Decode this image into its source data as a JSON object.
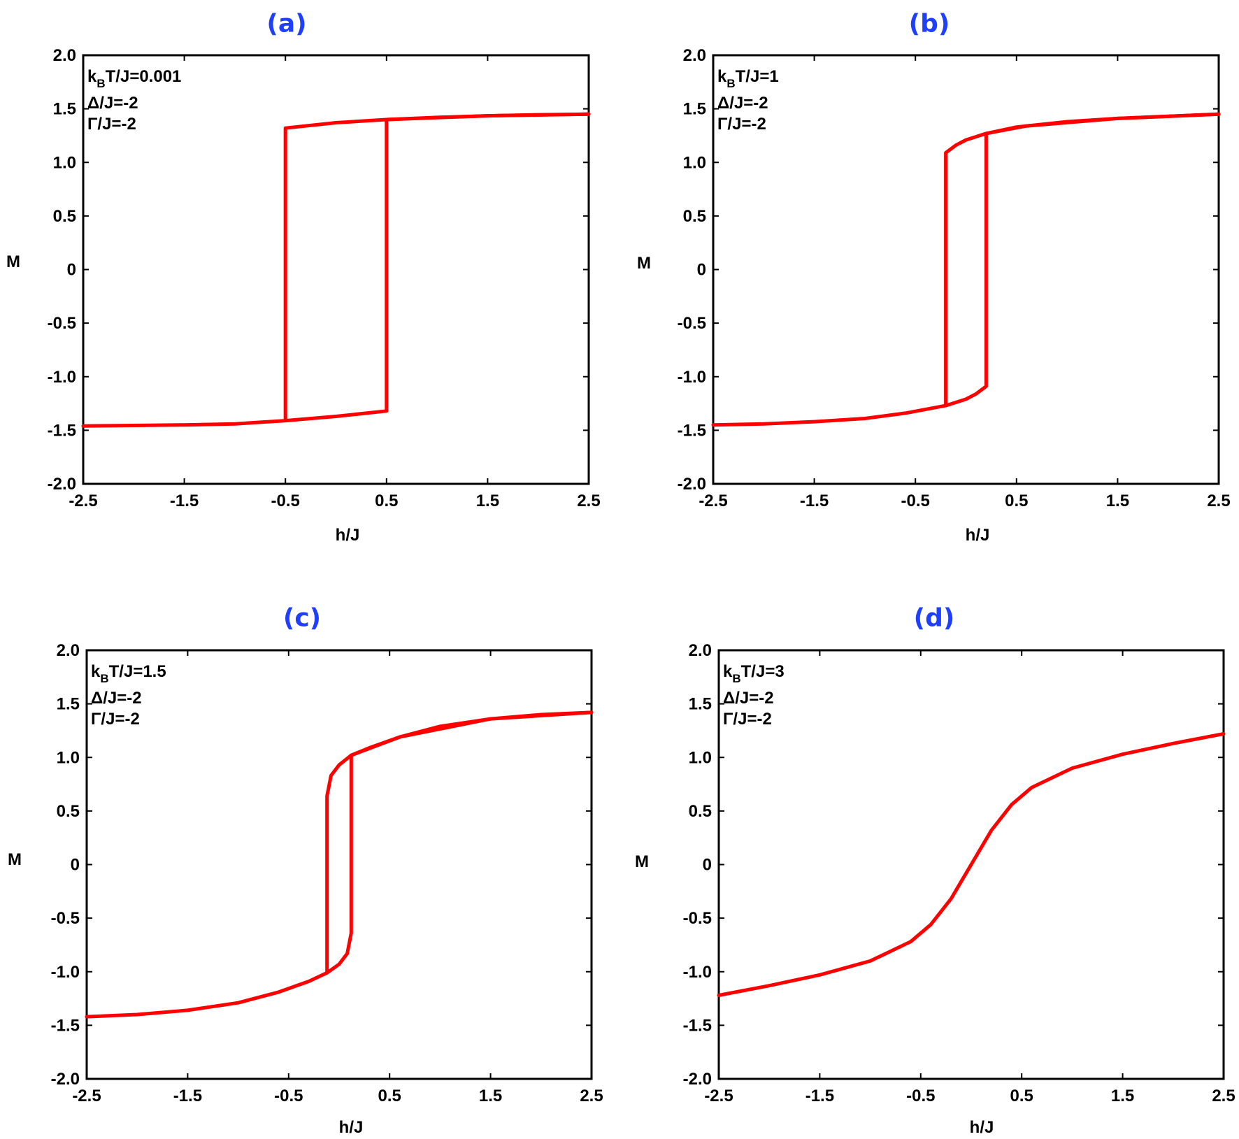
{
  "colors": {
    "curve": "#ff0000",
    "panel_label": "#1f3fff",
    "axis": "#000000"
  },
  "chart_data": [
    {
      "type": "line",
      "panel_label": "(a)",
      "xlabel": "h/J",
      "ylabel": "M",
      "xlim": [
        -2.5,
        2.5
      ],
      "ylim": [
        -2.0,
        2.0
      ],
      "x_ticks": [
        "-2.5",
        "-1.5",
        "-0.5",
        "0.5",
        "1.5",
        "2.5"
      ],
      "y_ticks": [
        "2.0",
        "1.5",
        "1.0",
        "0.5",
        "0",
        "-0.5",
        "-1.0",
        "-1.5",
        "-2.0"
      ],
      "annotations": [
        {
          "main": "k",
          "sub": "B",
          "rest": "T/J=0.001"
        },
        {
          "main": "Δ/J=-2"
        },
        {
          "main": "Γ/J=-2"
        }
      ],
      "series": [
        {
          "points": [
            [
              -2.5,
              -1.46
            ],
            [
              -2.0,
              -1.455
            ],
            [
              -1.5,
              -1.45
            ],
            [
              -1.0,
              -1.44
            ],
            [
              -0.5,
              -1.41
            ],
            [
              0.0,
              -1.37
            ],
            [
              0.5,
              -1.32
            ],
            [
              0.5,
              1.4
            ],
            [
              1.0,
              1.42
            ],
            [
              1.5,
              1.435
            ],
            [
              2.0,
              1.445
            ],
            [
              2.5,
              1.45
            ]
          ]
        },
        {
          "points": [
            [
              2.5,
              1.45
            ],
            [
              1.5,
              1.435
            ],
            [
              0.5,
              1.4
            ],
            [
              0.0,
              1.37
            ],
            [
              -0.5,
              1.32
            ],
            [
              -0.5,
              -1.41
            ]
          ]
        }
      ]
    },
    {
      "type": "line",
      "panel_label": "(b)",
      "xlabel": "h/J",
      "ylabel": "M",
      "xlim": [
        -2.5,
        2.5
      ],
      "ylim": [
        -2.0,
        2.0
      ],
      "x_ticks": [
        "-2.5",
        "-1.5",
        "-0.5",
        "0.5",
        "1.5",
        "2.5"
      ],
      "y_ticks": [
        "2.0",
        "1.5",
        "1.0",
        "0.5",
        "0",
        "-0.5",
        "-1.0",
        "-1.5",
        "-2.0"
      ],
      "annotations": [
        {
          "main": "k",
          "sub": "B",
          "rest": "T/J=1"
        },
        {
          "main": "Δ/J=-2"
        },
        {
          "main": "Γ/J=-2"
        }
      ],
      "series": [
        {
          "points": [
            [
              -2.5,
              -1.45
            ],
            [
              -2.0,
              -1.44
            ],
            [
              -1.5,
              -1.42
            ],
            [
              -1.0,
              -1.39
            ],
            [
              -0.6,
              -1.34
            ],
            [
              -0.2,
              -1.27
            ],
            [
              0.0,
              -1.21
            ],
            [
              0.1,
              -1.16
            ],
            [
              0.2,
              -1.09
            ],
            [
              0.2,
              1.27
            ],
            [
              0.5,
              1.33
            ],
            [
              1.0,
              1.38
            ],
            [
              1.5,
              1.41
            ],
            [
              2.0,
              1.43
            ],
            [
              2.5,
              1.45
            ]
          ]
        },
        {
          "points": [
            [
              2.5,
              1.45
            ],
            [
              1.5,
              1.41
            ],
            [
              0.6,
              1.34
            ],
            [
              0.2,
              1.27
            ],
            [
              0.0,
              1.21
            ],
            [
              -0.1,
              1.16
            ],
            [
              -0.2,
              1.09
            ],
            [
              -0.2,
              -1.27
            ]
          ]
        }
      ]
    },
    {
      "type": "line",
      "panel_label": "(c)",
      "xlabel": "h/J",
      "ylabel": "M",
      "xlim": [
        -2.5,
        2.5
      ],
      "ylim": [
        -2.0,
        2.0
      ],
      "x_ticks": [
        "-2.5",
        "-1.5",
        "-0.5",
        "0.5",
        "1.5",
        "2.5"
      ],
      "y_ticks": [
        "2.0",
        "1.5",
        "1.0",
        "0.5",
        "0",
        "-0.5",
        "-1.0",
        "-1.5",
        "-2.0"
      ],
      "annotations": [
        {
          "main": "k",
          "sub": "B",
          "rest": "T/J=1.5"
        },
        {
          "main": "Δ/J=-2"
        },
        {
          "main": "Γ/J=-2"
        }
      ],
      "series": [
        {
          "points": [
            [
              -2.5,
              -1.42
            ],
            [
              -2.0,
              -1.4
            ],
            [
              -1.5,
              -1.36
            ],
            [
              -1.0,
              -1.29
            ],
            [
              -0.6,
              -1.19
            ],
            [
              -0.3,
              -1.09
            ],
            [
              -0.12,
              -1.01
            ],
            [
              0.0,
              -0.93
            ],
            [
              0.08,
              -0.83
            ],
            [
              0.12,
              -0.64
            ],
            [
              0.12,
              1.02
            ],
            [
              0.3,
              1.09
            ],
            [
              0.6,
              1.19
            ],
            [
              1.0,
              1.29
            ],
            [
              1.5,
              1.36
            ],
            [
              2.0,
              1.4
            ],
            [
              2.5,
              1.42
            ]
          ]
        },
        {
          "points": [
            [
              2.5,
              1.42
            ],
            [
              1.5,
              1.36
            ],
            [
              0.6,
              1.19
            ],
            [
              0.12,
              1.02
            ],
            [
              0.0,
              0.93
            ],
            [
              -0.08,
              0.83
            ],
            [
              -0.12,
              0.64
            ],
            [
              -0.12,
              -1.01
            ]
          ]
        }
      ]
    },
    {
      "type": "line",
      "panel_label": "(d)",
      "xlabel": "h/J",
      "ylabel": "M",
      "xlim": [
        -2.5,
        2.5
      ],
      "ylim": [
        -2.0,
        2.0
      ],
      "x_ticks": [
        "-2.5",
        "-1.5",
        "-0.5",
        "0.5",
        "1.5",
        "2.5"
      ],
      "y_ticks": [
        "2.0",
        "1.5",
        "1.0",
        "0.5",
        "0",
        "-0.5",
        "-1.0",
        "-1.5",
        "-2.0"
      ],
      "annotations": [
        {
          "main": "k",
          "sub": "B",
          "rest": "T/J=3"
        },
        {
          "main": "Δ/J=-2"
        },
        {
          "main": "Γ/J=-2"
        }
      ],
      "series": [
        {
          "points": [
            [
              -2.5,
              -1.22
            ],
            [
              -2.0,
              -1.13
            ],
            [
              -1.5,
              -1.03
            ],
            [
              -1.0,
              -0.9
            ],
            [
              -0.6,
              -0.72
            ],
            [
              -0.4,
              -0.56
            ],
            [
              -0.2,
              -0.32
            ],
            [
              0.0,
              0.0
            ],
            [
              0.2,
              0.32
            ],
            [
              0.4,
              0.56
            ],
            [
              0.6,
              0.72
            ],
            [
              1.0,
              0.9
            ],
            [
              1.5,
              1.03
            ],
            [
              2.0,
              1.13
            ],
            [
              2.5,
              1.22
            ]
          ]
        }
      ]
    }
  ]
}
